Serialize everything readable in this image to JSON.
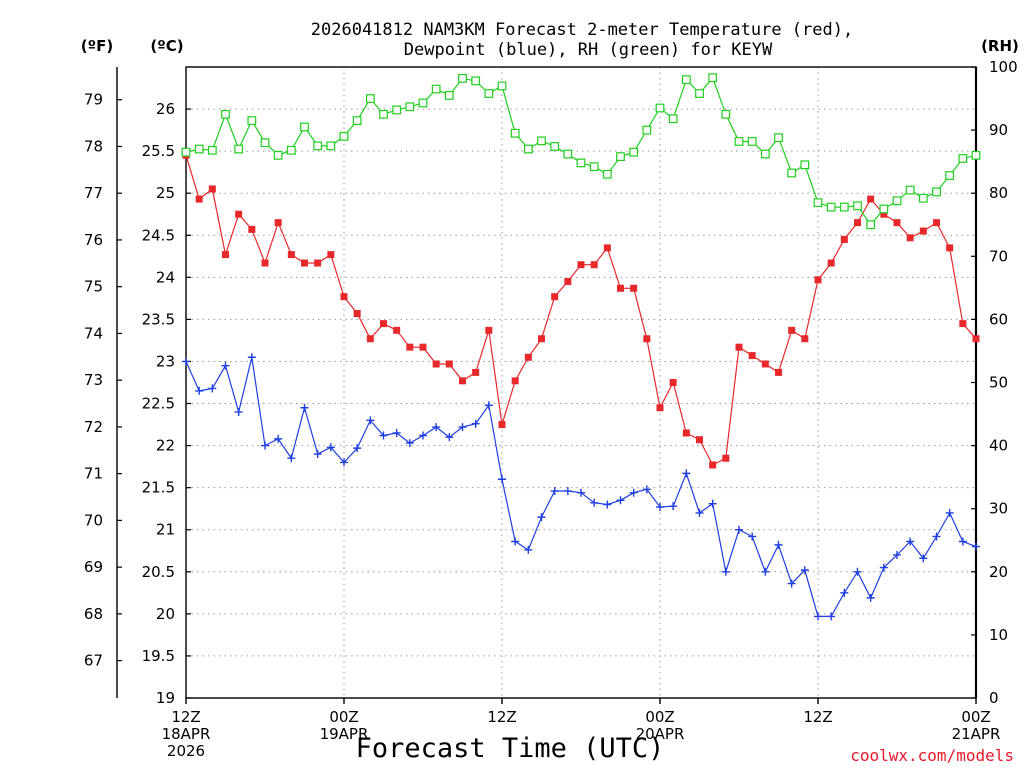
{
  "chart_data": {
    "type": "line",
    "title_lines": [
      "2026041812 NAM3KM Forecast 2-meter Temperature (red),",
      "Dewpoint (blue), RH (green) for KEYW"
    ],
    "xlabel": "Forecast Time (UTC)",
    "credit": "coolwx.com/models",
    "unit_labels": {
      "fahrenheit": "(ºF)",
      "celsius": "(ºC)",
      "rh": "(RH)"
    },
    "x_hours_range": [
      0,
      60
    ],
    "x_ticks": [
      {
        "hour": 0,
        "lines": [
          "12Z",
          "18APR",
          "2026"
        ]
      },
      {
        "hour": 12,
        "lines": [
          "00Z",
          "19APR"
        ]
      },
      {
        "hour": 24,
        "lines": [
          "12Z"
        ]
      },
      {
        "hour": 36,
        "lines": [
          "00Z",
          "20APR"
        ]
      },
      {
        "hour": 48,
        "lines": [
          "12Z"
        ]
      },
      {
        "hour": 60,
        "lines": [
          "00Z",
          "21APR"
        ]
      }
    ],
    "celsius_range": [
      19,
      26.5
    ],
    "celsius_ticks": [
      "19",
      "19.5",
      "20",
      "20.5",
      "21",
      "21.5",
      "22",
      "22.5",
      "23",
      "23.5",
      "24",
      "24.5",
      "25",
      "25.5",
      "26"
    ],
    "fahrenheit_ticks": [
      "67",
      "68",
      "69",
      "70",
      "71",
      "72",
      "73",
      "74",
      "75",
      "76",
      "77",
      "78",
      "79"
    ],
    "rh_range": [
      0,
      100
    ],
    "rh_ticks": [
      "0",
      "10",
      "20",
      "30",
      "40",
      "50",
      "60",
      "70",
      "80",
      "90",
      "100"
    ],
    "series": [
      {
        "name": "2-meter Temperature",
        "units": "°C",
        "color": "#e8292c",
        "marker": "filled-square",
        "values": [
          25.45,
          24.93,
          25.05,
          24.27,
          24.75,
          24.57,
          24.17,
          24.65,
          24.27,
          24.17,
          24.17,
          24.27,
          23.77,
          23.57,
          23.27,
          23.45,
          23.37,
          23.17,
          23.17,
          22.97,
          22.97,
          22.77,
          22.87,
          23.37,
          22.25,
          22.77,
          23.05,
          23.27,
          23.77,
          23.95,
          24.15,
          24.15,
          24.35,
          23.87,
          23.87,
          23.27,
          22.45,
          22.75,
          22.15,
          22.07,
          21.77,
          21.85,
          23.17,
          23.07,
          22.97,
          22.87,
          23.37,
          23.27,
          23.97,
          24.17,
          24.45,
          24.65,
          24.93,
          24.75,
          24.65,
          24.47,
          24.55,
          24.65,
          24.35,
          23.45,
          23.27
        ]
      },
      {
        "name": "Dewpoint",
        "units": "°C",
        "color": "#1f3fe0",
        "marker": "plus",
        "values": [
          23.0,
          22.65,
          22.68,
          22.95,
          22.4,
          23.05,
          22.0,
          22.08,
          21.85,
          22.45,
          21.9,
          21.98,
          21.8,
          21.97,
          22.3,
          22.12,
          22.15,
          22.03,
          22.12,
          22.22,
          22.1,
          22.22,
          22.26,
          22.48,
          21.6,
          20.86,
          20.76,
          21.15,
          21.46,
          21.46,
          21.44,
          21.32,
          21.3,
          21.35,
          21.44,
          21.48,
          21.27,
          21.28,
          21.67,
          21.2,
          21.31,
          20.5,
          21.0,
          20.92,
          20.5,
          20.82,
          20.36,
          20.52,
          19.97,
          19.97,
          20.25,
          20.5,
          20.19,
          20.55,
          20.7,
          20.86,
          20.66,
          20.92,
          21.2,
          20.86,
          20.8
        ]
      },
      {
        "name": "RH",
        "units": "%",
        "color": "#1fcf1f",
        "marker": "open-square",
        "values": [
          86.5,
          87.0,
          86.8,
          92.5,
          87.0,
          91.5,
          88.0,
          86.0,
          86.8,
          90.5,
          87.5,
          87.5,
          89.0,
          91.5,
          95.0,
          92.5,
          93.2,
          93.7,
          94.3,
          96.5,
          95.5,
          98.2,
          97.8,
          95.8,
          97.0,
          89.5,
          87.0,
          88.3,
          87.4,
          86.2,
          84.8,
          84.2,
          83.0,
          85.8,
          86.5,
          90.0,
          93.5,
          91.8,
          98.0,
          95.8,
          98.3,
          92.5,
          88.2,
          88.2,
          86.2,
          88.8,
          83.2,
          84.5,
          78.5,
          77.8,
          77.8,
          78.0,
          75.0,
          77.5,
          78.8,
          80.5,
          79.2,
          80.2,
          82.8,
          85.5,
          86.0
        ]
      }
    ]
  }
}
